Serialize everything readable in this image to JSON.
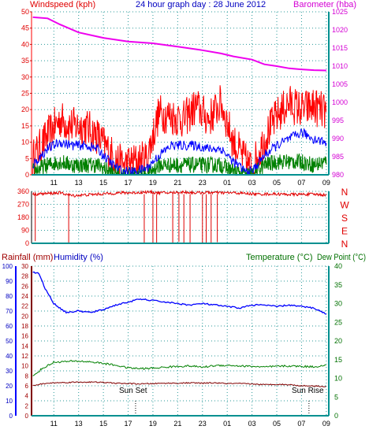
{
  "colors": {
    "wind_label": "#e00000",
    "title": "#0000c0",
    "baro_label": "#d400d4",
    "temp_label": "#007000",
    "humidity_label": "#0000c0",
    "rain_label": "#a00000",
    "grid": "#2a9a9a",
    "axis_right_wind": "#009090",
    "direction": "#e00000",
    "gust": "#ff0000",
    "avg_wind": "#0000ff",
    "min_wind": "#008000",
    "barometer": "#ee00ee",
    "temperature": "#008000",
    "humidity": "#0000ff",
    "dewpoint": "#800000",
    "rain": "#cc0000",
    "sun_text": "#000000"
  },
  "header": {
    "windspeed_label": "Windspeed (kph)",
    "title": "24 hour graph day : 28 June 2012",
    "barometer_label": "Barometer (hba)"
  },
  "panel3_header": {
    "rain_label": "Rainfall (mm)",
    "humidity_label": "Humidity (%)",
    "temp_label": "Temperature (°C)",
    "dew_label": "Dew Point (°C)"
  },
  "x_ticks": [
    "11",
    "13",
    "15",
    "17",
    "19",
    "21",
    "23",
    "01",
    "03",
    "05",
    "07",
    "09"
  ],
  "annotations": {
    "sunset": "Sun Set",
    "sunrise": "Sun Rise"
  },
  "chart_data": [
    {
      "type": "line",
      "title": "24 hour graph day : 28 June 2012",
      "xlabel": "",
      "ylabel": "Windspeed (kph)",
      "y2label": "Barometer (hba)",
      "x_range_hours": [
        9.2,
        33.2
      ],
      "ylim": [
        0,
        50
      ],
      "y2lim": [
        980,
        1025
      ],
      "y_ticks": [
        0,
        5,
        10,
        15,
        20,
        25,
        30,
        35,
        40,
        45,
        50
      ],
      "y2_ticks": [
        980,
        985,
        990,
        995,
        1000,
        1005,
        1010,
        1015,
        1020,
        1025
      ],
      "grid": true,
      "series": [
        {
          "name": "Barometer (hba)",
          "axis": "right",
          "x": [
            9.3,
            10.5,
            11.5,
            13.0,
            15.0,
            17.0,
            19.0,
            21.0,
            23.0,
            24.5,
            25.5,
            27.0,
            28.0,
            29.0,
            30.0,
            31.0,
            32.0,
            33.0
          ],
          "values": [
            1023.5,
            1023.2,
            1021.5,
            1019.3,
            1017.8,
            1016.8,
            1016.3,
            1015.4,
            1014.4,
            1013.5,
            1012.7,
            1011.8,
            1010.5,
            1010.0,
            1009.4,
            1009.1,
            1008.9,
            1008.8
          ]
        },
        {
          "name": "Gust",
          "axis": "left",
          "x": [
            9.3,
            10.5,
            11.5,
            12.5,
            13.5,
            14.5,
            15.5,
            16.5,
            17.5,
            18.5,
            19.5,
            20.5,
            21.5,
            22.5,
            23.5,
            24.5,
            25.5,
            26.5,
            27.0,
            28.0,
            29.0,
            30.0,
            31.0,
            32.0,
            33.0
          ],
          "values": [
            5,
            12,
            17,
            15,
            15,
            12,
            7,
            3,
            4,
            5,
            19,
            18,
            17,
            21,
            17,
            22,
            10,
            4,
            2,
            11,
            18,
            22,
            20,
            21,
            19
          ]
        },
        {
          "name": "Average wind",
          "axis": "left",
          "x": [
            9.3,
            10.5,
            11.5,
            12.5,
            13.5,
            14.5,
            15.5,
            16.5,
            17.5,
            18.5,
            19.5,
            20.5,
            21.5,
            22.5,
            23.5,
            24.5,
            25.5,
            26.5,
            27.0,
            28.0,
            29.0,
            30.0,
            31.0,
            32.0,
            33.0
          ],
          "values": [
            3,
            8,
            10,
            9,
            9,
            8,
            4,
            1,
            1,
            2,
            6,
            9,
            9,
            9,
            8,
            8,
            4,
            1,
            1,
            6,
            9,
            11,
            13,
            11,
            10
          ]
        },
        {
          "name": "Minimum wind",
          "axis": "left",
          "x": [
            9.3,
            10.5,
            11.5,
            12.5,
            13.5,
            14.5,
            15.5,
            16.5,
            17.5,
            18.5,
            19.5,
            20.5,
            21.5,
            22.5,
            23.5,
            24.5,
            25.5,
            26.5,
            27.0,
            28.0,
            29.0,
            30.0,
            31.0,
            32.0,
            33.0
          ],
          "values": [
            1,
            3,
            4,
            3,
            3,
            3,
            1,
            0,
            0,
            0,
            3,
            3,
            3,
            3,
            3,
            3,
            1,
            0,
            0,
            3,
            4,
            4,
            4,
            3,
            4
          ]
        }
      ]
    },
    {
      "type": "scatter",
      "title": "",
      "ylabel": "",
      "y_ticks": [
        0,
        90,
        180,
        270,
        360
      ],
      "y2_labels": [
        "N",
        "W",
        "S",
        "E",
        "N"
      ],
      "ylim": [
        0,
        360
      ],
      "grid": true,
      "series": [
        {
          "name": "Wind direction",
          "x": [
            9.3,
            10.5,
            11.5,
            12.5,
            13.5,
            14.5,
            15.5,
            16.5,
            17.5,
            18.5,
            19.5,
            20.5,
            21.5,
            22.5,
            23.5,
            24.5,
            25.5,
            26.5,
            27.5,
            28.5,
            29.5,
            30.5,
            31.5,
            32.5,
            33.0
          ],
          "values": [
            340,
            345,
            350,
            330,
            335,
            340,
            345,
            350,
            350,
            355,
            350,
            350,
            355,
            350,
            352,
            350,
            350,
            345,
            340,
            342,
            340,
            338,
            340,
            338,
            335
          ]
        },
        {
          "name": "Wind direction (north excursions)",
          "x": [
            9.5,
            12.2,
            18.3,
            19.0,
            19.3,
            20.6,
            21.1,
            21.5,
            22.0,
            23.0,
            23.3,
            23.7,
            24.2
          ],
          "values": [
            15,
            5,
            2,
            5,
            2,
            5,
            10,
            0,
            5,
            3,
            5,
            2,
            8
          ]
        }
      ]
    },
    {
      "type": "line",
      "title": "",
      "ylabel": "Humidity (%)",
      "y2label": "Temperature (°C)",
      "x_range_hours": [
        9.2,
        33.2
      ],
      "ylim": [
        0,
        100
      ],
      "y_ticks": [
        0,
        10,
        20,
        30,
        40,
        50,
        60,
        70,
        80,
        90,
        100
      ],
      "rain_ticks": [
        0,
        2,
        4,
        6,
        8,
        10,
        12,
        14,
        16,
        18,
        20,
        22,
        24,
        26,
        28,
        30
      ],
      "y2lim": [
        0,
        40
      ],
      "y2_ticks": [
        0,
        5,
        10,
        15,
        20,
        25,
        30,
        35,
        40
      ],
      "grid": true,
      "series": [
        {
          "name": "Humidity (%)",
          "axis": "left",
          "x": [
            9.3,
            9.8,
            10.3,
            11.0,
            12.0,
            13.0,
            14.0,
            15.0,
            16.0,
            17.0,
            18.0,
            19.0,
            20.0,
            21.0,
            22.0,
            23.0,
            24.0,
            25.0,
            26.0,
            27.0,
            28.0,
            29.0,
            30.0,
            31.0,
            32.0,
            33.0
          ],
          "values": [
            96,
            95,
            85,
            75,
            69,
            70,
            69,
            71,
            74,
            76,
            78,
            77,
            76,
            75,
            74,
            75,
            74,
            73,
            72,
            74,
            74,
            73,
            74,
            73,
            72,
            68
          ]
        },
        {
          "name": "Temperature (°C)",
          "axis": "right",
          "x": [
            9.3,
            10.0,
            11.0,
            12.0,
            13.0,
            14.0,
            15.0,
            16.0,
            17.0,
            18.0,
            19.0,
            20.0,
            21.0,
            22.0,
            23.0,
            24.0,
            25.0,
            26.0,
            27.0,
            28.0,
            29.0,
            30.0,
            31.0,
            32.0,
            33.0
          ],
          "values": [
            10.5,
            12.5,
            14.3,
            14.5,
            14.6,
            14.4,
            14.0,
            13.5,
            12.8,
            12.6,
            12.7,
            13.0,
            13.2,
            13.3,
            13.0,
            13.4,
            13.5,
            13.3,
            13.2,
            13.0,
            13.2,
            13.3,
            13.2,
            13.1,
            13.5
          ]
        },
        {
          "name": "Dew Point (°C)",
          "axis": "right",
          "x": [
            9.3,
            10.0,
            11.0,
            12.0,
            13.0,
            14.0,
            15.0,
            16.0,
            17.0,
            18.0,
            19.0,
            20.0,
            21.0,
            22.0,
            23.0,
            24.0,
            25.0,
            26.0,
            27.0,
            28.0,
            29.0,
            30.0,
            31.0,
            32.0,
            33.0
          ],
          "values": [
            8.0,
            8.5,
            8.8,
            8.9,
            9.0,
            9.0,
            8.9,
            8.7,
            8.6,
            8.5,
            8.6,
            8.7,
            8.7,
            8.8,
            8.7,
            8.8,
            8.6,
            8.6,
            8.5,
            8.3,
            8.4,
            8.3,
            8.0,
            8.0,
            7.8
          ]
        },
        {
          "name": "Rainfall (mm)",
          "axis": "rain",
          "x": [
            9.3,
            33.2
          ],
          "values": [
            0,
            0
          ]
        }
      ],
      "sunset_hour": 17.6,
      "sunrise_hour": 31.6
    }
  ]
}
